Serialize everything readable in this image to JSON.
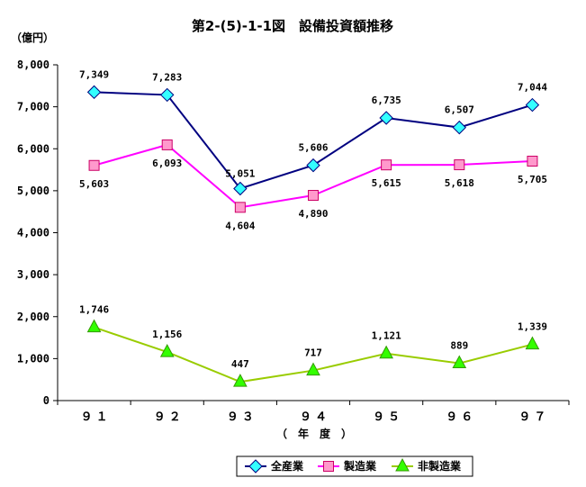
{
  "chart_data": {
    "type": "line",
    "title": "第2-(5)-1-1図　設備投資額推移",
    "unit_label": "（億円）",
    "xlabel": "（　年　度　）",
    "categories": [
      "９１",
      "９２",
      "９３",
      "９４",
      "９５",
      "９６",
      "９７"
    ],
    "ylim": [
      0,
      8000
    ],
    "yticks": [
      "0",
      "1,000",
      "2,000",
      "3,000",
      "4,000",
      "5,000",
      "6,000",
      "7,000",
      "8,000"
    ],
    "legend_position": "bottom",
    "grid": false,
    "series": [
      {
        "name": "全産業",
        "values": [
          7349,
          7283,
          5051,
          5606,
          6735,
          6507,
          7044
        ],
        "labels": [
          "7,349",
          "7,283",
          "5,051",
          "5,606",
          "6,735",
          "6,507",
          "7,044"
        ],
        "line_color": "#000080",
        "marker": "diamond",
        "marker_color": "#33ffff"
      },
      {
        "name": "製造業",
        "values": [
          5603,
          6093,
          4604,
          4890,
          5615,
          5618,
          5705
        ],
        "labels": [
          "5,603",
          "6,093",
          "4,604",
          "4,890",
          "5,615",
          "5,618",
          "5,705"
        ],
        "line_color": "#ff00ff",
        "marker": "square",
        "marker_color": "#ff99cc"
      },
      {
        "name": "非製造業",
        "values": [
          1746,
          1156,
          447,
          717,
          1121,
          889,
          1339
        ],
        "labels": [
          "1,746",
          "1,156",
          "447",
          "717",
          "1,121",
          "889",
          "1,339"
        ],
        "line_color": "#99cc00",
        "marker": "triangle",
        "marker_color": "#33ff00"
      }
    ]
  }
}
